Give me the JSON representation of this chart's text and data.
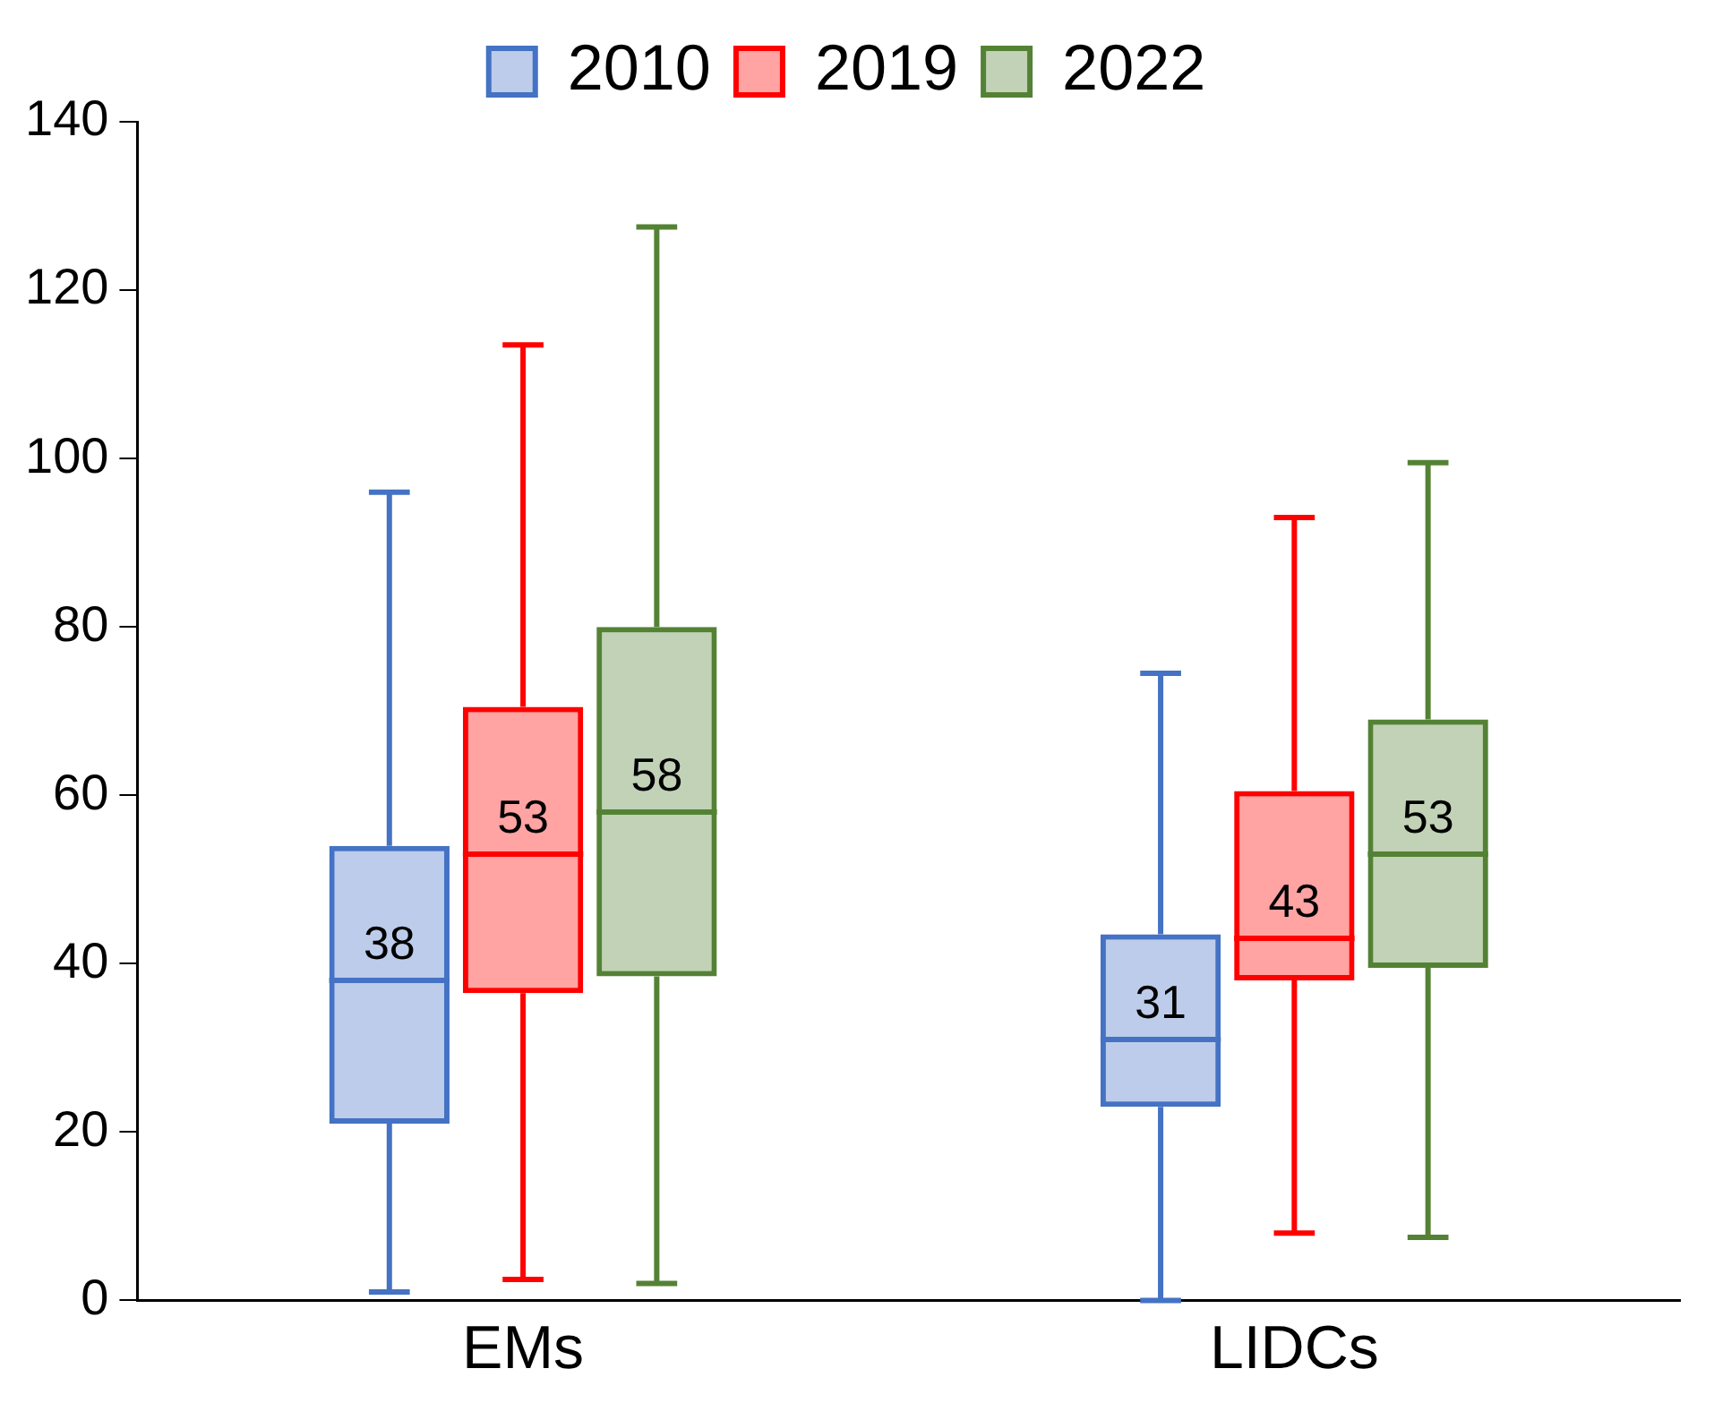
{
  "chart_data": {
    "type": "box",
    "categories": [
      "EMs",
      "LIDCs"
    ],
    "series": [
      {
        "name": "2010",
        "color": "#4472c4",
        "boxes": [
          {
            "low": 1,
            "q1": 21,
            "median": 38,
            "q3": 54,
            "high": 96
          },
          {
            "low": 0,
            "q1": 23,
            "median": 31,
            "q3": 43.5,
            "high": 74.5
          }
        ],
        "value_labels": [
          "38",
          "31"
        ]
      },
      {
        "name": "2019",
        "color": "#ff0000",
        "boxes": [
          {
            "low": 2.5,
            "q1": 36.5,
            "median": 53,
            "q3": 70.5,
            "high": 113.5
          },
          {
            "low": 8,
            "q1": 38,
            "median": 43,
            "q3": 60.5,
            "high": 93
          }
        ],
        "value_labels": [
          "53",
          "43"
        ]
      },
      {
        "name": "2022",
        "color": "#548235",
        "boxes": [
          {
            "low": 2,
            "q1": 38.5,
            "median": 58,
            "q3": 80,
            "high": 127.5
          },
          {
            "low": 7.5,
            "q1": 39.5,
            "median": 53,
            "q3": 69,
            "high": 99.5
          }
        ],
        "value_labels": [
          "58",
          "53"
        ]
      }
    ],
    "ylim": [
      0,
      140
    ],
    "yticks": [
      0,
      20,
      40,
      60,
      80,
      100,
      120,
      140
    ],
    "grid": false,
    "legend": "top"
  }
}
